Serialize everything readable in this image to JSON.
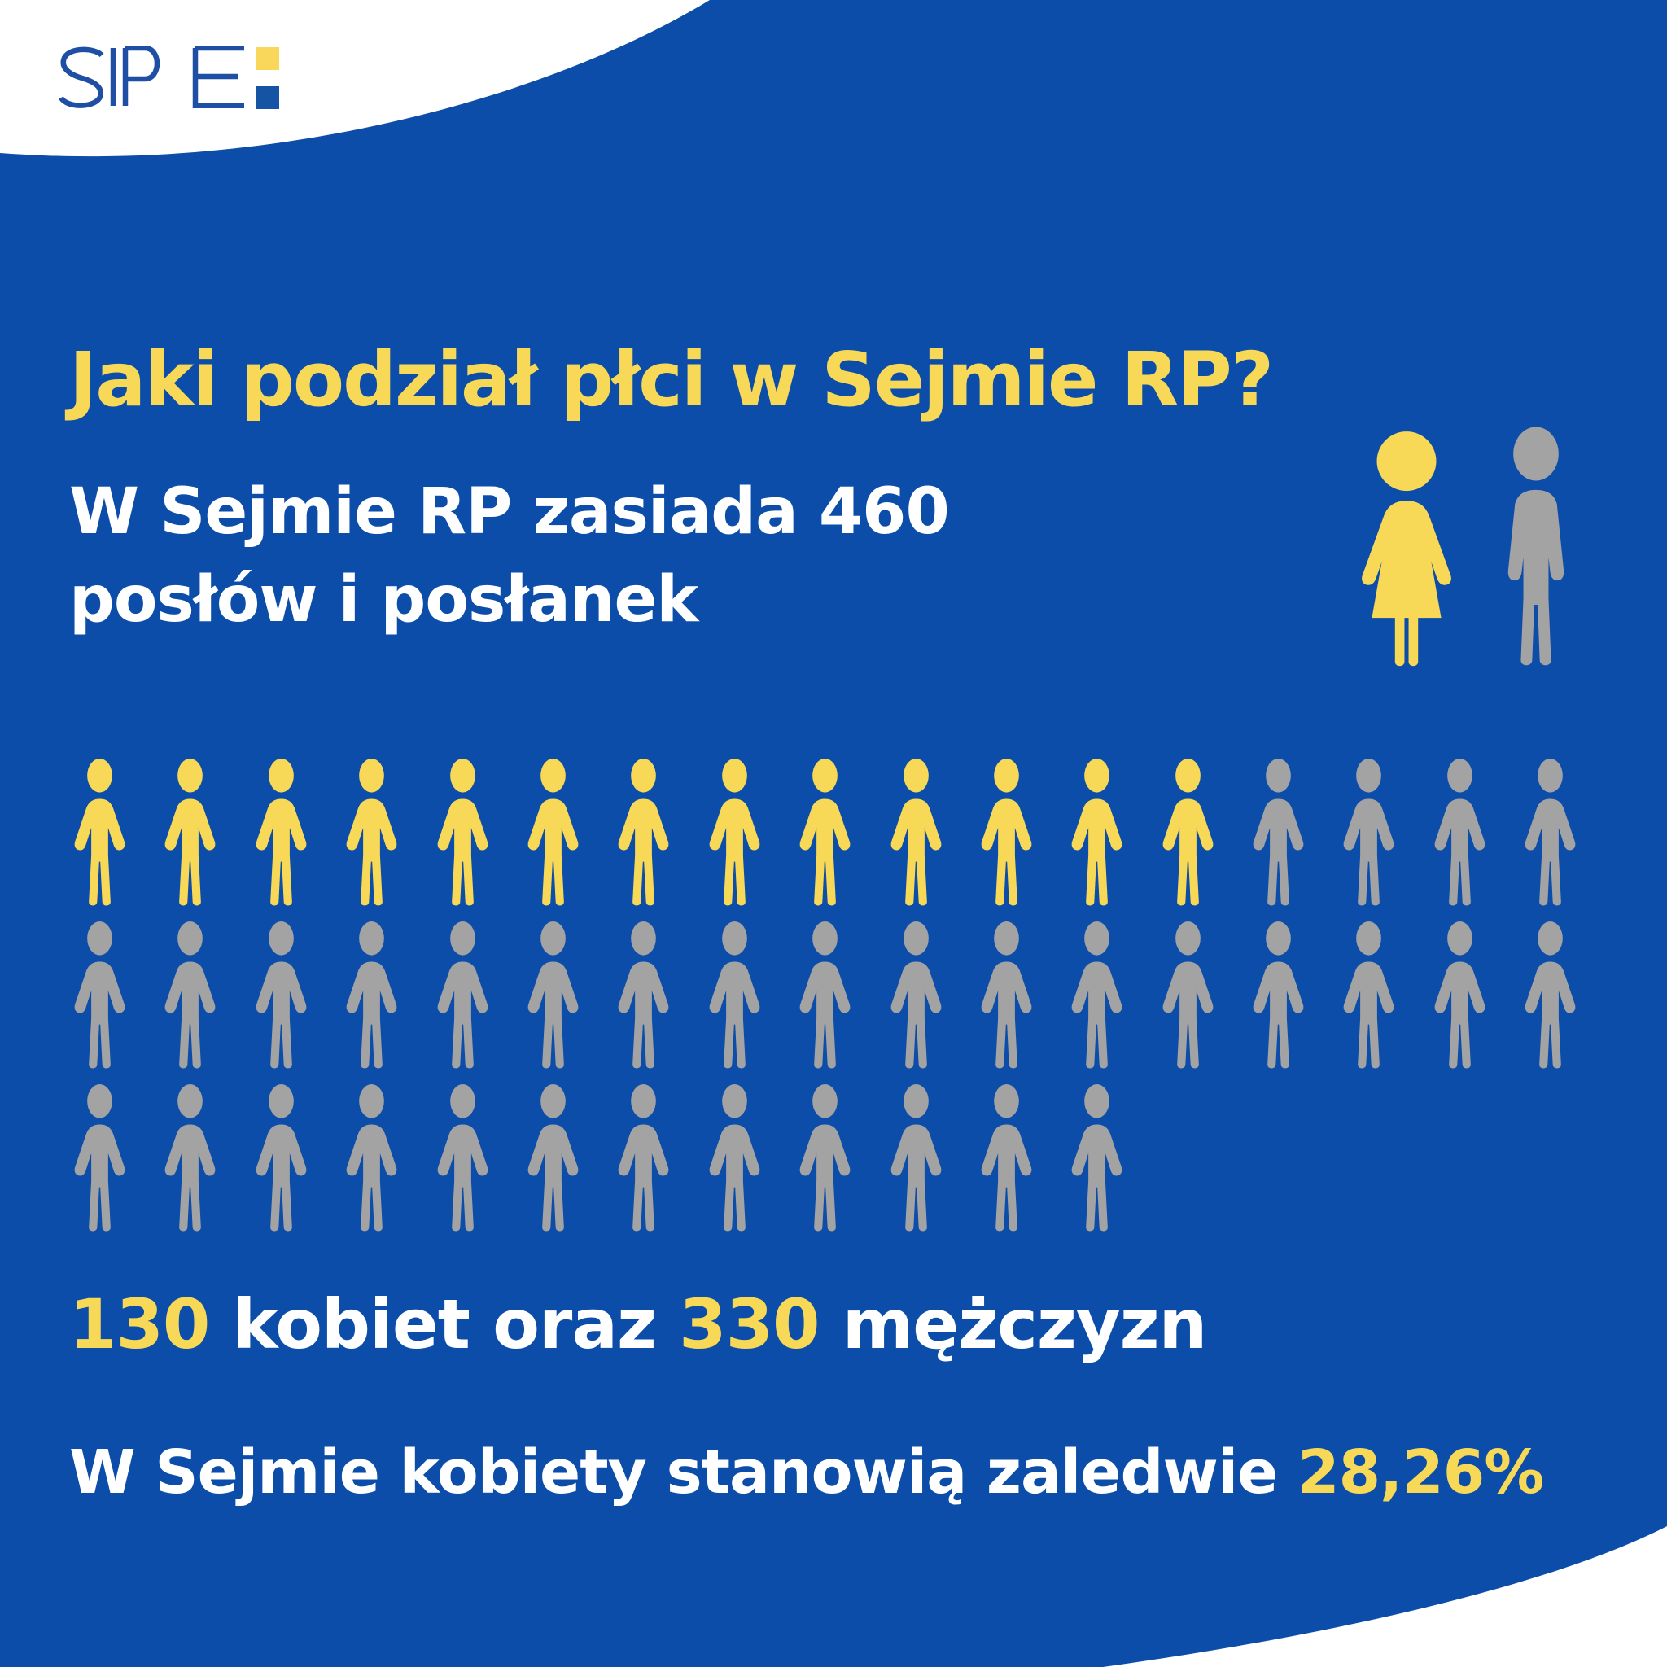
{
  "meta": {
    "language": "pl",
    "kind": "infographic"
  },
  "colors": {
    "background": "#0B4DA8",
    "yellow": "#F8D957",
    "gray": "#A3A3A3",
    "white": "#FFFFFF",
    "logo_blue": "#1F4FA5",
    "mark_top": "#F8D75A",
    "mark_bottom": "#1553A5"
  },
  "logo": {
    "brand": "SIPE"
  },
  "header": {
    "title": "Jaki podział płci w Sejmie RP?",
    "subtitle_line1": "W Sejmie RP zasiada 460",
    "subtitle_line2": "posłów i posłanek"
  },
  "chart_data": {
    "type": "pictogram",
    "title": "Jaki podział płci w Sejmie RP?",
    "categories": [
      "kobiety",
      "mężczyźni"
    ],
    "values": [
      130,
      330
    ],
    "total": 460,
    "people_per_icon": 10,
    "women_percent_label": "28,26%",
    "icon_colors": {
      "kobiety": "#F8D957",
      "mężczyźni": "#A3A3A3"
    },
    "pictogram_rows": [
      {
        "yellow_icons": 13,
        "gray_icons": 4
      },
      {
        "yellow_icons": 0,
        "gray_icons": 17
      },
      {
        "yellow_icons": 0,
        "gray_icons": 12
      }
    ]
  },
  "stats": {
    "line1": {
      "women_count": "130",
      "between": " kobiet oraz ",
      "men_count": "330",
      "after": " mężczyzn"
    },
    "line2": {
      "prefix": "W Sejmie kobiety stanowią zaledwie ",
      "highlight": "28,26%"
    }
  }
}
